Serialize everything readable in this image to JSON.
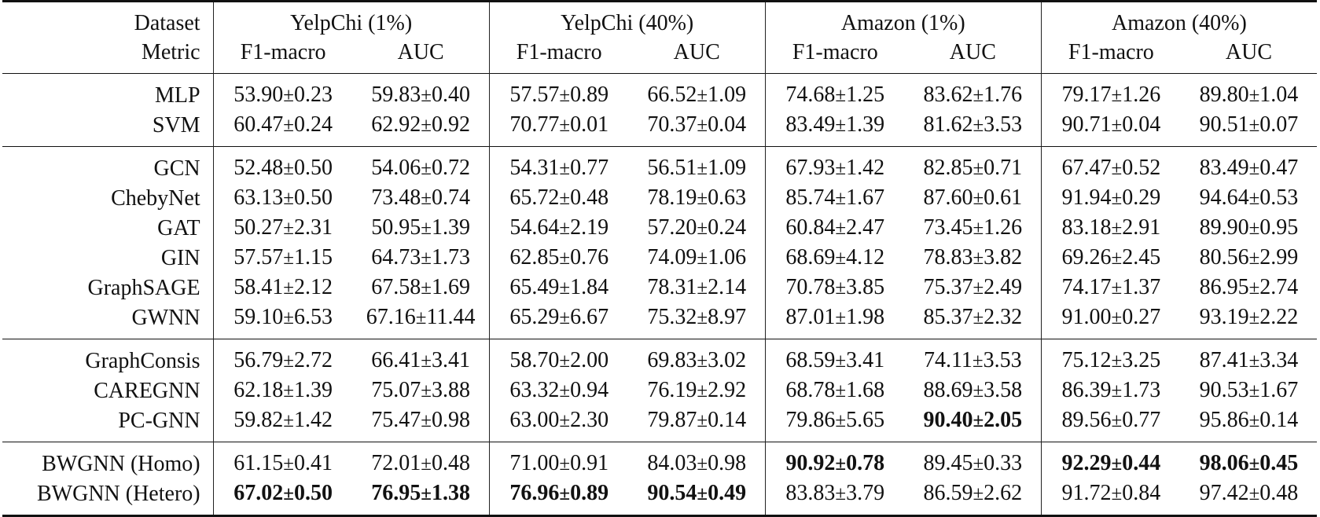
{
  "header": {
    "dataset_label": "Dataset",
    "metric_label": "Metric",
    "datasets": [
      "YelpChi (1%)",
      "YelpChi (40%)",
      "Amazon (1%)",
      "Amazon (40%)"
    ],
    "metrics": [
      "F1-macro",
      "AUC",
      "F1-macro",
      "AUC",
      "F1-macro",
      "AUC",
      "F1-macro",
      "AUC"
    ]
  },
  "groups": [
    {
      "rows": [
        {
          "name": "MLP",
          "cells": [
            {
              "v": "53.90",
              "e": "0.23"
            },
            {
              "v": "59.83",
              "e": "0.40"
            },
            {
              "v": "57.57",
              "e": "0.89"
            },
            {
              "v": "66.52",
              "e": "1.09"
            },
            {
              "v": "74.68",
              "e": "1.25"
            },
            {
              "v": "83.62",
              "e": "1.76"
            },
            {
              "v": "79.17",
              "e": "1.26"
            },
            {
              "v": "89.80",
              "e": "1.04"
            }
          ]
        },
        {
          "name": "SVM",
          "cells": [
            {
              "v": "60.47",
              "e": "0.24"
            },
            {
              "v": "62.92",
              "e": "0.92"
            },
            {
              "v": "70.77",
              "e": "0.01"
            },
            {
              "v": "70.37",
              "e": "0.04"
            },
            {
              "v": "83.49",
              "e": "1.39"
            },
            {
              "v": "81.62",
              "e": "3.53"
            },
            {
              "v": "90.71",
              "e": "0.04"
            },
            {
              "v": "90.51",
              "e": "0.07"
            }
          ]
        }
      ]
    },
    {
      "rows": [
        {
          "name": "GCN",
          "cells": [
            {
              "v": "52.48",
              "e": "0.50"
            },
            {
              "v": "54.06",
              "e": "0.72"
            },
            {
              "v": "54.31",
              "e": "0.77"
            },
            {
              "v": "56.51",
              "e": "1.09"
            },
            {
              "v": "67.93",
              "e": "1.42"
            },
            {
              "v": "82.85",
              "e": "0.71"
            },
            {
              "v": "67.47",
              "e": "0.52"
            },
            {
              "v": "83.49",
              "e": "0.47"
            }
          ]
        },
        {
          "name": "ChebyNet",
          "cells": [
            {
              "v": "63.13",
              "e": "0.50"
            },
            {
              "v": "73.48",
              "e": "0.74"
            },
            {
              "v": "65.72",
              "e": "0.48"
            },
            {
              "v": "78.19",
              "e": "0.63"
            },
            {
              "v": "85.74",
              "e": "1.67"
            },
            {
              "v": "87.60",
              "e": "0.61"
            },
            {
              "v": "91.94",
              "e": "0.29"
            },
            {
              "v": "94.64",
              "e": "0.53"
            }
          ]
        },
        {
          "name": "GAT",
          "cells": [
            {
              "v": "50.27",
              "e": "2.31"
            },
            {
              "v": "50.95",
              "e": "1.39"
            },
            {
              "v": "54.64",
              "e": "2.19"
            },
            {
              "v": "57.20",
              "e": "0.24"
            },
            {
              "v": "60.84",
              "e": "2.47"
            },
            {
              "v": "73.45",
              "e": "1.26"
            },
            {
              "v": "83.18",
              "e": "2.91"
            },
            {
              "v": "89.90",
              "e": "0.95"
            }
          ]
        },
        {
          "name": "GIN",
          "cells": [
            {
              "v": "57.57",
              "e": "1.15"
            },
            {
              "v": "64.73",
              "e": "1.73"
            },
            {
              "v": "62.85",
              "e": "0.76"
            },
            {
              "v": "74.09",
              "e": "1.06"
            },
            {
              "v": "68.69",
              "e": "4.12"
            },
            {
              "v": "78.83",
              "e": "3.82"
            },
            {
              "v": "69.26",
              "e": "2.45"
            },
            {
              "v": "80.56",
              "e": "2.99"
            }
          ]
        },
        {
          "name": "GraphSAGE",
          "cells": [
            {
              "v": "58.41",
              "e": "2.12"
            },
            {
              "v": "67.58",
              "e": "1.69"
            },
            {
              "v": "65.49",
              "e": "1.84"
            },
            {
              "v": "78.31",
              "e": "2.14"
            },
            {
              "v": "70.78",
              "e": "3.85"
            },
            {
              "v": "75.37",
              "e": "2.49"
            },
            {
              "v": "74.17",
              "e": "1.37"
            },
            {
              "v": "86.95",
              "e": "2.74"
            }
          ]
        },
        {
          "name": "GWNN",
          "cells": [
            {
              "v": "59.10",
              "e": "6.53"
            },
            {
              "v": "67.16",
              "e": "11.44"
            },
            {
              "v": "65.29",
              "e": "6.67"
            },
            {
              "v": "75.32",
              "e": "8.97"
            },
            {
              "v": "87.01",
              "e": "1.98"
            },
            {
              "v": "85.37",
              "e": "2.32"
            },
            {
              "v": "91.00",
              "e": "0.27"
            },
            {
              "v": "93.19",
              "e": "2.22"
            }
          ]
        }
      ]
    },
    {
      "rows": [
        {
          "name": "GraphConsis",
          "cells": [
            {
              "v": "56.79",
              "e": "2.72"
            },
            {
              "v": "66.41",
              "e": "3.41"
            },
            {
              "v": "58.70",
              "e": "2.00"
            },
            {
              "v": "69.83",
              "e": "3.02"
            },
            {
              "v": "68.59",
              "e": "3.41"
            },
            {
              "v": "74.11",
              "e": "3.53"
            },
            {
              "v": "75.12",
              "e": "3.25"
            },
            {
              "v": "87.41",
              "e": "3.34"
            }
          ]
        },
        {
          "name": "CAREGNN",
          "cells": [
            {
              "v": "62.18",
              "e": "1.39"
            },
            {
              "v": "75.07",
              "e": "3.88"
            },
            {
              "v": "63.32",
              "e": "0.94"
            },
            {
              "v": "76.19",
              "e": "2.92"
            },
            {
              "v": "68.78",
              "e": "1.68"
            },
            {
              "v": "88.69",
              "e": "3.58"
            },
            {
              "v": "86.39",
              "e": "1.73"
            },
            {
              "v": "90.53",
              "e": "1.67"
            }
          ]
        },
        {
          "name": "PC-GNN",
          "cells": [
            {
              "v": "59.82",
              "e": "1.42"
            },
            {
              "v": "75.47",
              "e": "0.98"
            },
            {
              "v": "63.00",
              "e": "2.30"
            },
            {
              "v": "79.87",
              "e": "0.14"
            },
            {
              "v": "79.86",
              "e": "5.65"
            },
            {
              "v": "90.40",
              "e": "2.05",
              "bold": true
            },
            {
              "v": "89.56",
              "e": "0.77"
            },
            {
              "v": "95.86",
              "e": "0.14"
            }
          ]
        }
      ]
    },
    {
      "rows": [
        {
          "name": "BWGNN (Homo)",
          "cells": [
            {
              "v": "61.15",
              "e": "0.41"
            },
            {
              "v": "72.01",
              "e": "0.48"
            },
            {
              "v": "71.00",
              "e": "0.91"
            },
            {
              "v": "84.03",
              "e": "0.98"
            },
            {
              "v": "90.92",
              "e": "0.78",
              "bold": true
            },
            {
              "v": "89.45",
              "e": "0.33"
            },
            {
              "v": "92.29",
              "e": "0.44",
              "bold": true
            },
            {
              "v": "98.06",
              "e": "0.45",
              "bold": true
            }
          ]
        },
        {
          "name": "BWGNN (Hetero)",
          "cells": [
            {
              "v": "67.02",
              "e": "0.50",
              "bold": true
            },
            {
              "v": "76.95",
              "e": "1.38",
              "bold": true
            },
            {
              "v": "76.96",
              "e": "0.89",
              "bold": true
            },
            {
              "v": "90.54",
              "e": "0.49",
              "bold": true
            },
            {
              "v": "83.83",
              "e": "3.79"
            },
            {
              "v": "86.59",
              "e": "2.62"
            },
            {
              "v": "91.72",
              "e": "0.84"
            },
            {
              "v": "97.42",
              "e": "0.48"
            }
          ]
        }
      ]
    }
  ]
}
